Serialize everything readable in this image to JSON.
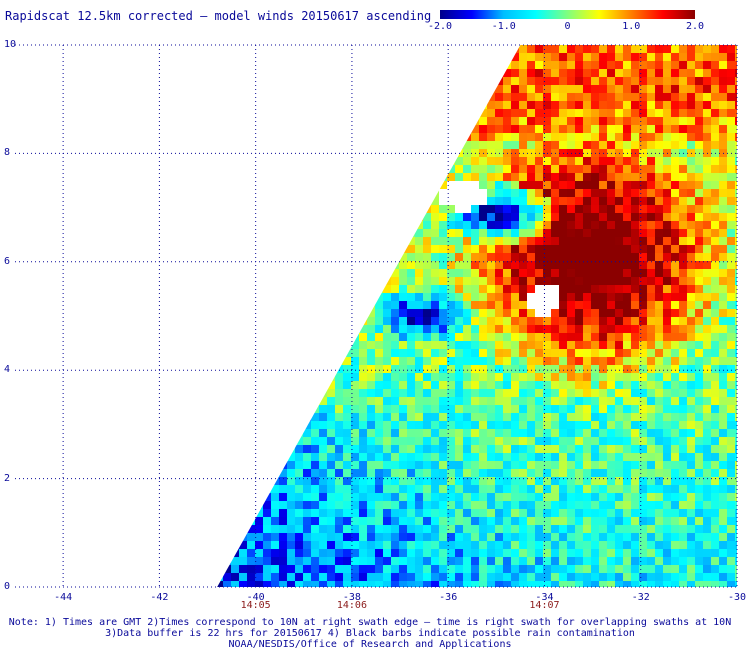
{
  "title": "Rapidscat 12.5km corrected – model winds 20150617 ascending",
  "colorbar": {
    "min": -2.0,
    "max": 2.0,
    "tick_labels": [
      "-2.0",
      "-1.0",
      "0",
      "1.0",
      "2.0"
    ],
    "tick_values": [
      -2.0,
      -1.0,
      0,
      1.0,
      2.0
    ],
    "stops": [
      "#00008b",
      "#0000ff",
      "#00bfff",
      "#00ffff",
      "#7fff7f",
      "#ffff00",
      "#ff7f00",
      "#ff0000",
      "#8b0000"
    ]
  },
  "axes": {
    "lat_range": [
      0,
      10
    ],
    "lon_range": [
      -45,
      -30
    ],
    "lat_ticks": [
      "10",
      "8",
      "6",
      "4",
      "2",
      "0"
    ],
    "lat_tick_values": [
      10,
      8,
      6,
      4,
      2,
      0
    ],
    "lon_ticks": [
      "-44",
      "-42",
      "-40",
      "-38",
      "-36",
      "-34",
      "-32",
      "-30"
    ],
    "lon_tick_values": [
      -44,
      -42,
      -40,
      -38,
      -36,
      -34,
      -32,
      -30
    ],
    "grid": true,
    "grid_style": "dotted",
    "gridline_color": "#0a0a9a"
  },
  "times": [
    {
      "label": "14:05",
      "lon": -40
    },
    {
      "label": "14:06",
      "lon": -38
    },
    {
      "label": "14:07",
      "lon": -34
    }
  ],
  "notes": [
    "Note: 1) Times are GMT 2)Times correspond to 10N at right swath edge – time is right swath for overlapping swaths at 10N",
    "3)Data buffer is 22 hrs for 20150617 4) Black barbs indicate possible rain contamination",
    "NOAA/NESDIS/Office of Research and Applications"
  ],
  "swath": {
    "left_edge": [
      [
        0,
        -40.8
      ],
      [
        10,
        -34.5
      ]
    ],
    "right_edge_lon": -30,
    "features": [
      {
        "type": "high_positive_region",
        "center_lon": -33.0,
        "center_lat": 6.0,
        "value": 2.0
      },
      {
        "type": "negative_pocket",
        "center_lon": -35.0,
        "center_lat": 6.9,
        "value": -1.8
      },
      {
        "type": "negative_pocket",
        "center_lon": -36.6,
        "center_lat": 5.0,
        "value": -1.5
      },
      {
        "type": "positive_band_north",
        "center_lon": -31.5,
        "center_lat": 9.3,
        "value": 1.2
      },
      {
        "type": "near_zero_south",
        "center_lon": -35.0,
        "center_lat": 1.5,
        "value": -0.6
      }
    ]
  }
}
